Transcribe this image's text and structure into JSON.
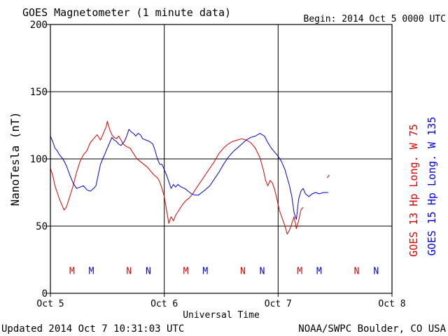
{
  "header": {
    "title": "GOES Magnetometer (1 minute data)",
    "begin": "Begin:  2014 Oct 5 0000 UTC"
  },
  "footer": {
    "updated": "Updated 2014 Oct  7 10:31:03 UTC",
    "credit": "NOAA/SWPC Boulder, CO USA"
  },
  "colors": {
    "goes13": "#e00000",
    "goes15": "#0000e0",
    "frame": "#000000",
    "background": "#ffffff"
  },
  "chart_data": {
    "type": "line",
    "xlabel": "Universal Time",
    "ylabel": "NanoTesla (nT)",
    "xlim": [
      0,
      3
    ],
    "ylim": [
      0,
      200
    ],
    "grid": true,
    "x_ticks": [
      {
        "value": 0,
        "label": "Oct 5"
      },
      {
        "value": 1,
        "label": "Oct 6"
      },
      {
        "value": 2,
        "label": "Oct 7"
      },
      {
        "value": 3,
        "label": "Oct 8"
      }
    ],
    "y_ticks": [
      {
        "value": 0,
        "label": "0"
      },
      {
        "value": 50,
        "label": "50"
      },
      {
        "value": 100,
        "label": "100"
      },
      {
        "value": 150,
        "label": "150"
      },
      {
        "value": 200,
        "label": "200"
      }
    ],
    "legend": [
      {
        "text": "GOES 13 Hp  Long. W 75",
        "color": "#e00000"
      },
      {
        "text": "GOES 15 Hp  Long. W 135",
        "color": "#0000e0"
      }
    ],
    "series": [
      {
        "name": "GOES 13 Hp",
        "color": "#e00000",
        "points": [
          [
            0.0,
            93
          ],
          [
            0.02,
            88
          ],
          [
            0.04,
            80
          ],
          [
            0.06,
            75
          ],
          [
            0.08,
            70
          ],
          [
            0.1,
            66
          ],
          [
            0.12,
            62
          ],
          [
            0.14,
            64
          ],
          [
            0.17,
            72
          ],
          [
            0.2,
            80
          ],
          [
            0.23,
            90
          ],
          [
            0.26,
            98
          ],
          [
            0.29,
            103
          ],
          [
            0.32,
            106
          ],
          [
            0.35,
            112
          ],
          [
            0.38,
            115
          ],
          [
            0.41,
            118
          ],
          [
            0.44,
            114
          ],
          [
            0.47,
            120
          ],
          [
            0.49,
            124
          ],
          [
            0.5,
            128
          ],
          [
            0.52,
            122
          ],
          [
            0.54,
            118
          ],
          [
            0.56,
            116
          ],
          [
            0.58,
            115
          ],
          [
            0.6,
            117
          ],
          [
            0.62,
            114
          ],
          [
            0.64,
            111
          ],
          [
            0.67,
            109
          ],
          [
            0.7,
            108
          ],
          [
            0.73,
            104
          ],
          [
            0.76,
            100
          ],
          [
            0.79,
            98
          ],
          [
            0.82,
            96
          ],
          [
            0.85,
            94
          ],
          [
            0.88,
            91
          ],
          [
            0.91,
            88
          ],
          [
            0.94,
            86
          ],
          [
            0.96,
            83
          ],
          [
            0.98,
            78
          ],
          [
            1.0,
            72
          ],
          [
            1.02,
            62
          ],
          [
            1.04,
            52
          ],
          [
            1.06,
            57
          ],
          [
            1.08,
            54
          ],
          [
            1.1,
            58
          ],
          [
            1.13,
            62
          ],
          [
            1.16,
            66
          ],
          [
            1.19,
            69
          ],
          [
            1.22,
            71
          ],
          [
            1.25,
            74
          ],
          [
            1.28,
            78
          ],
          [
            1.32,
            83
          ],
          [
            1.36,
            88
          ],
          [
            1.4,
            93
          ],
          [
            1.44,
            98
          ],
          [
            1.48,
            104
          ],
          [
            1.52,
            108
          ],
          [
            1.56,
            111
          ],
          [
            1.6,
            113
          ],
          [
            1.64,
            114
          ],
          [
            1.68,
            115
          ],
          [
            1.72,
            114
          ],
          [
            1.76,
            112
          ],
          [
            1.8,
            108
          ],
          [
            1.84,
            101
          ],
          [
            1.87,
            92
          ],
          [
            1.89,
            84
          ],
          [
            1.91,
            80
          ],
          [
            1.93,
            84
          ],
          [
            1.95,
            82
          ],
          [
            1.97,
            77
          ],
          [
            1.99,
            70
          ],
          [
            2.01,
            62
          ],
          [
            2.04,
            55
          ],
          [
            2.06,
            50
          ],
          [
            2.08,
            44
          ],
          [
            2.1,
            47
          ],
          [
            2.12,
            52
          ],
          [
            2.14,
            57
          ],
          [
            2.16,
            48
          ],
          [
            2.18,
            54
          ],
          [
            2.2,
            62
          ],
          [
            2.22,
            64
          ]
        ],
        "points_extra": [
          [
            2.43,
            86
          ],
          [
            2.45,
            88
          ]
        ]
      },
      {
        "name": "GOES 15 Hp",
        "color": "#0000e0",
        "points": [
          [
            0.0,
            117
          ],
          [
            0.02,
            113
          ],
          [
            0.04,
            108
          ],
          [
            0.06,
            106
          ],
          [
            0.08,
            103
          ],
          [
            0.11,
            100
          ],
          [
            0.14,
            95
          ],
          [
            0.17,
            88
          ],
          [
            0.2,
            82
          ],
          [
            0.23,
            78
          ],
          [
            0.26,
            79
          ],
          [
            0.29,
            80
          ],
          [
            0.32,
            77
          ],
          [
            0.35,
            76
          ],
          [
            0.38,
            78
          ],
          [
            0.4,
            80
          ],
          [
            0.42,
            88
          ],
          [
            0.44,
            96
          ],
          [
            0.46,
            100
          ],
          [
            0.48,
            104
          ],
          [
            0.5,
            108
          ],
          [
            0.52,
            112
          ],
          [
            0.54,
            116
          ],
          [
            0.56,
            114
          ],
          [
            0.58,
            113
          ],
          [
            0.6,
            111
          ],
          [
            0.62,
            110
          ],
          [
            0.65,
            113
          ],
          [
            0.67,
            117
          ],
          [
            0.69,
            122
          ],
          [
            0.71,
            120
          ],
          [
            0.73,
            119
          ],
          [
            0.75,
            117
          ],
          [
            0.77,
            119
          ],
          [
            0.79,
            118
          ],
          [
            0.81,
            115
          ],
          [
            0.84,
            114
          ],
          [
            0.87,
            113
          ],
          [
            0.9,
            111
          ],
          [
            0.92,
            106
          ],
          [
            0.94,
            100
          ],
          [
            0.96,
            96
          ],
          [
            0.98,
            96
          ],
          [
            1.0,
            92
          ],
          [
            1.02,
            88
          ],
          [
            1.04,
            83
          ],
          [
            1.06,
            78
          ],
          [
            1.08,
            81
          ],
          [
            1.1,
            79
          ],
          [
            1.12,
            81
          ],
          [
            1.15,
            79
          ],
          [
            1.18,
            78
          ],
          [
            1.21,
            76
          ],
          [
            1.24,
            74
          ],
          [
            1.27,
            73
          ],
          [
            1.3,
            73
          ],
          [
            1.33,
            75
          ],
          [
            1.36,
            77
          ],
          [
            1.4,
            80
          ],
          [
            1.44,
            85
          ],
          [
            1.48,
            90
          ],
          [
            1.52,
            96
          ],
          [
            1.56,
            101
          ],
          [
            1.6,
            105
          ],
          [
            1.64,
            108
          ],
          [
            1.68,
            111
          ],
          [
            1.72,
            114
          ],
          [
            1.76,
            116
          ],
          [
            1.8,
            117
          ],
          [
            1.84,
            119
          ],
          [
            1.88,
            117
          ],
          [
            1.91,
            112
          ],
          [
            1.94,
            108
          ],
          [
            1.97,
            105
          ],
          [
            2.0,
            102
          ],
          [
            2.03,
            98
          ],
          [
            2.06,
            92
          ],
          [
            2.08,
            86
          ],
          [
            2.1,
            80
          ],
          [
            2.12,
            72
          ],
          [
            2.14,
            60
          ],
          [
            2.16,
            55
          ],
          [
            2.18,
            70
          ],
          [
            2.2,
            76
          ],
          [
            2.22,
            78
          ],
          [
            2.24,
            74
          ],
          [
            2.27,
            72
          ],
          [
            2.3,
            74
          ],
          [
            2.33,
            75
          ],
          [
            2.36,
            74
          ],
          [
            2.4,
            75
          ],
          [
            2.44,
            75
          ]
        ]
      }
    ],
    "markers": [
      {
        "label": "M",
        "x": 0.19,
        "color": "#e00000"
      },
      {
        "label": "M",
        "x": 0.36,
        "color": "#0000e0"
      },
      {
        "label": "N",
        "x": 0.69,
        "color": "#e00000"
      },
      {
        "label": "N",
        "x": 0.86,
        "color": "#0000e0"
      },
      {
        "label": "M",
        "x": 1.19,
        "color": "#e00000"
      },
      {
        "label": "M",
        "x": 1.36,
        "color": "#0000e0"
      },
      {
        "label": "N",
        "x": 1.69,
        "color": "#e00000"
      },
      {
        "label": "N",
        "x": 1.86,
        "color": "#0000e0"
      },
      {
        "label": "M",
        "x": 2.19,
        "color": "#e00000"
      },
      {
        "label": "M",
        "x": 2.36,
        "color": "#0000e0"
      },
      {
        "label": "N",
        "x": 2.69,
        "color": "#e00000"
      },
      {
        "label": "N",
        "x": 2.86,
        "color": "#0000e0"
      }
    ],
    "marker_y": 17
  }
}
